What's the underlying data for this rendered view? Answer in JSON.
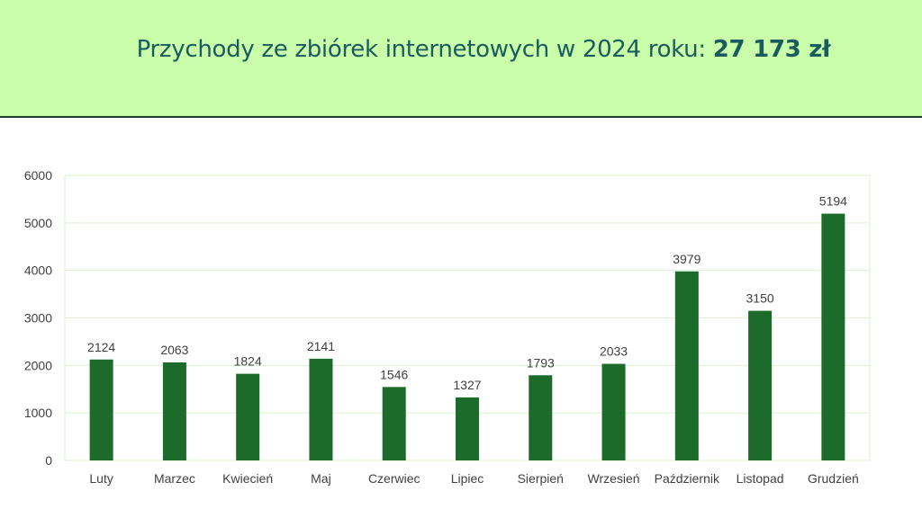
{
  "header": {
    "title_prefix": "Przychody ze zbiórek internetowych w 2024 roku: ",
    "title_amount": "27 173 zł",
    "background": "#c9fda9",
    "title_color": "#1a5c5e"
  },
  "chart_data": {
    "type": "bar",
    "categories": [
      "Luty",
      "Marzec",
      "Kwiecień",
      "Maj",
      "Czerwiec",
      "Lipiec",
      "Sierpień",
      "Wrzesień",
      "Październik",
      "Listopad",
      "Grudzień"
    ],
    "values": [
      2124,
      2063,
      1824,
      2141,
      1546,
      1327,
      1793,
      2033,
      3979,
      3150,
      5194
    ],
    "data_labels": [
      "2124",
      "2063",
      "1824",
      "2141",
      "1546",
      "1327",
      "1793",
      "2033",
      "3979",
      "3150",
      "5194"
    ],
    "ylim": [
      0,
      6000
    ],
    "yticks": [
      0,
      1000,
      2000,
      3000,
      4000,
      5000,
      6000
    ],
    "ytick_labels": [
      "0",
      "1000",
      "2000",
      "3000",
      "4000",
      "5000",
      "6000"
    ],
    "grid": true,
    "legend": "none",
    "bar_color": "#1c6b2a",
    "grid_color": "#d9f2d0"
  }
}
